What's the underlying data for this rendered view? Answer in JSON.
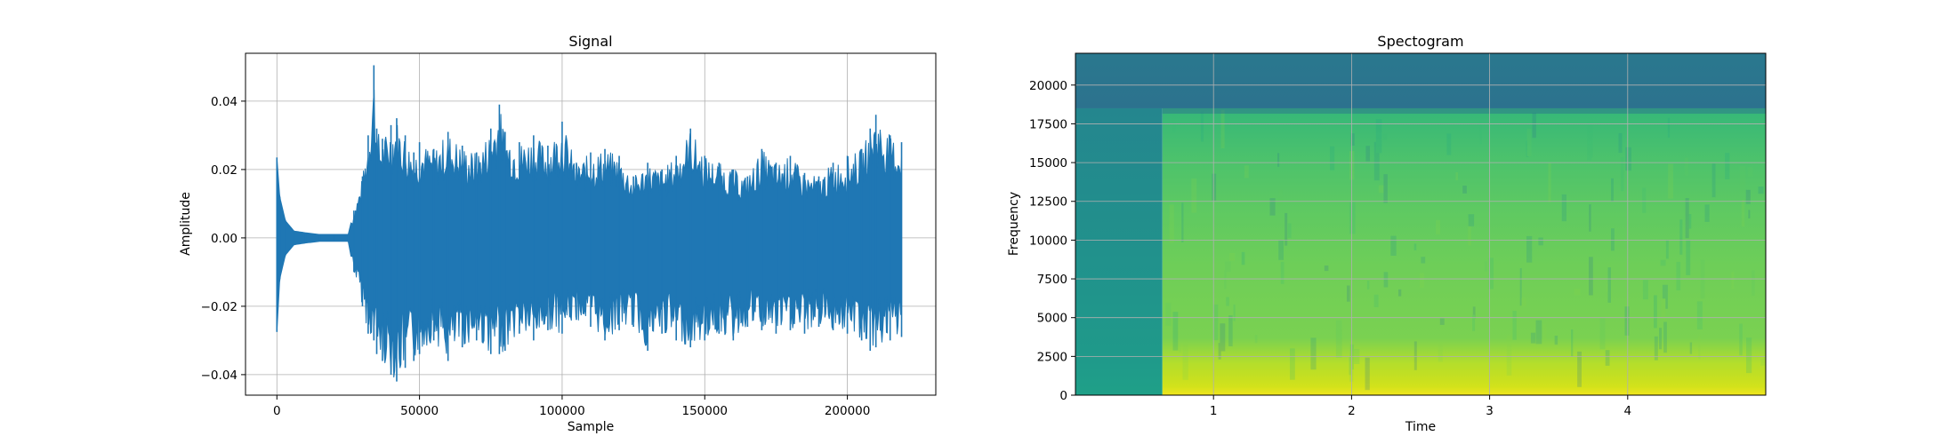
{
  "chart_data": [
    {
      "type": "line",
      "title": "Signal",
      "xlabel": "Sample",
      "ylabel": "Amplitude",
      "xlim": [
        -11000,
        231000
      ],
      "ylim": [
        -0.046,
        0.054
      ],
      "grid": true,
      "color": "#1f77b4",
      "x_ticks": [
        0,
        50000,
        100000,
        150000,
        200000
      ],
      "x_tick_labels": [
        "0",
        "50000",
        "100000",
        "150000",
        "200000"
      ],
      "y_ticks": [
        -0.04,
        -0.02,
        0.0,
        0.02,
        0.04
      ],
      "y_tick_labels": [
        "−0.04",
        "−0.02",
        "0.00",
        "0.02",
        "0.04"
      ],
      "series": [
        {
          "x": [
            0,
            1000,
            3000,
            6000,
            10000,
            15000,
            20000,
            25000,
            27000,
            30000,
            32000,
            34000,
            35000,
            37000,
            40000,
            42000,
            45000,
            48000,
            50000,
            55000,
            60000,
            65000,
            70000,
            75000,
            78000,
            80000,
            85000,
            90000,
            95000,
            100000,
            105000,
            110000,
            115000,
            120000,
            125000,
            130000,
            135000,
            140000,
            145000,
            150000,
            155000,
            160000,
            165000,
            170000,
            175000,
            180000,
            185000,
            190000,
            195000,
            200000,
            205000,
            208000,
            210000,
            215000,
            219000
          ],
          "upper": [
            0.0235,
            0.012,
            0.005,
            0.002,
            0.0015,
            0.001,
            0.001,
            0.001,
            0.008,
            0.018,
            0.03,
            0.0505,
            0.032,
            0.029,
            0.033,
            0.035,
            0.03,
            0.025,
            0.028,
            0.026,
            0.031,
            0.027,
            0.025,
            0.032,
            0.039,
            0.031,
            0.028,
            0.03,
            0.027,
            0.034,
            0.022,
            0.025,
            0.026,
            0.024,
            0.018,
            0.022,
            0.02,
            0.024,
            0.032,
            0.024,
            0.022,
            0.02,
            0.018,
            0.026,
            0.022,
            0.024,
            0.019,
            0.018,
            0.022,
            0.024,
            0.026,
            0.032,
            0.036,
            0.03,
            0.028
          ],
          "lower": [
            -0.0275,
            -0.012,
            -0.005,
            -0.002,
            -0.0015,
            -0.001,
            -0.001,
            -0.001,
            -0.01,
            -0.02,
            -0.028,
            -0.03,
            -0.034,
            -0.036,
            -0.04,
            -0.042,
            -0.038,
            -0.036,
            -0.034,
            -0.03,
            -0.036,
            -0.032,
            -0.03,
            -0.034,
            -0.034,
            -0.033,
            -0.028,
            -0.03,
            -0.027,
            -0.028,
            -0.024,
            -0.026,
            -0.03,
            -0.027,
            -0.026,
            -0.033,
            -0.028,
            -0.03,
            -0.032,
            -0.03,
            -0.028,
            -0.03,
            -0.026,
            -0.027,
            -0.028,
            -0.027,
            -0.028,
            -0.026,
            -0.027,
            -0.028,
            -0.03,
            -0.033,
            -0.032,
            -0.03,
            -0.029
          ]
        }
      ]
    },
    {
      "type": "heatmap",
      "title": "Spectogram",
      "xlabel": "Time",
      "ylabel": "Frequency",
      "xlim": [
        0,
        5.0
      ],
      "ylim": [
        0,
        22050
      ],
      "grid": true,
      "x_ticks": [
        1,
        2,
        3,
        4
      ],
      "x_tick_labels": [
        "1",
        "2",
        "3",
        "4"
      ],
      "y_ticks": [
        0,
        2500,
        5000,
        7500,
        10000,
        12500,
        15000,
        17500,
        20000
      ],
      "y_tick_labels": [
        "0",
        "2500",
        "5000",
        "7500",
        "10000",
        "12500",
        "15000",
        "17500",
        "20000"
      ],
      "colormap": "viridis",
      "onset_time": 0.63,
      "cutoff_frequency": 18500
    }
  ]
}
